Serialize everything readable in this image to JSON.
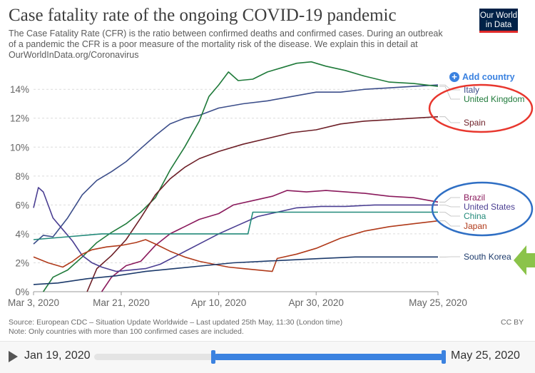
{
  "header": {
    "title": "Case fatality rate of the ongoing COVID-19 pandemic",
    "subtitle": "The Case Fatality Rate (CFR) is the ratio between confirmed deaths and confirmed cases. During an outbreak of a pandemic the CFR is a poor measure of the mortality risk of the disease. We explain this in detail at OurWorldInData.org/Coronavirus",
    "logo_line1": "Our World",
    "logo_line2": "in Data",
    "add_country": "Add country"
  },
  "footer": {
    "source": "Source: European CDC – Situation Update Worldwide – Last updated 25th May, 11:30 (London time)",
    "note": "Note: Only countries with more than 100 confirmed cases are included.",
    "license": "CC BY"
  },
  "timeline": {
    "start_label": "Jan 19, 2020",
    "end_label": "May 25, 2020",
    "selected_start_fraction": 0.34,
    "selected_end_fraction": 1.0
  },
  "annotations": {
    "red_circle_color": "#e8372e",
    "blue_circle_color": "#2f6fc4",
    "arrow_color": "#8bc34a"
  },
  "chart_data": {
    "type": "line",
    "x_ticks": [
      "Mar 3, 2020",
      "Mar 21, 2020",
      "Apr 10, 2020",
      "Apr 30, 2020",
      "May 25, 2020"
    ],
    "x_range": [
      "2020-03-03",
      "2020-05-25"
    ],
    "y_ticks": [
      "0%",
      "2%",
      "4%",
      "6%",
      "8%",
      "10%",
      "12%",
      "14%"
    ],
    "ylim": [
      0,
      14.7
    ],
    "grid": "horizontal dashed",
    "series": [
      {
        "name": "Italy",
        "color": "#3c4e8a",
        "points": [
          [
            "2020-03-03",
            3.3
          ],
          [
            "2020-03-05",
            3.9
          ],
          [
            "2020-03-07",
            3.8
          ],
          [
            "2020-03-10",
            5.1
          ],
          [
            "2020-03-13",
            6.7
          ],
          [
            "2020-03-16",
            7.7
          ],
          [
            "2020-03-19",
            8.3
          ],
          [
            "2020-03-22",
            9.0
          ],
          [
            "2020-03-25",
            9.9
          ],
          [
            "2020-03-28",
            10.8
          ],
          [
            "2020-03-31",
            11.6
          ],
          [
            "2020-04-03",
            12.0
          ],
          [
            "2020-04-06",
            12.2
          ],
          [
            "2020-04-10",
            12.7
          ],
          [
            "2020-04-15",
            13.0
          ],
          [
            "2020-04-20",
            13.2
          ],
          [
            "2020-04-25",
            13.5
          ],
          [
            "2020-04-30",
            13.8
          ],
          [
            "2020-05-05",
            13.8
          ],
          [
            "2020-05-10",
            14.0
          ],
          [
            "2020-05-15",
            14.1
          ],
          [
            "2020-05-20",
            14.2
          ],
          [
            "2020-05-25",
            14.3
          ]
        ]
      },
      {
        "name": "United Kingdom",
        "color": "#1f7a3a",
        "points": [
          [
            "2020-03-05",
            0.0
          ],
          [
            "2020-03-07",
            1.0
          ],
          [
            "2020-03-10",
            1.5
          ],
          [
            "2020-03-13",
            2.4
          ],
          [
            "2020-03-16",
            3.4
          ],
          [
            "2020-03-19",
            4.1
          ],
          [
            "2020-03-22",
            4.7
          ],
          [
            "2020-03-25",
            5.5
          ],
          [
            "2020-03-28",
            6.5
          ],
          [
            "2020-03-31",
            8.4
          ],
          [
            "2020-04-03",
            10.0
          ],
          [
            "2020-04-06",
            11.8
          ],
          [
            "2020-04-08",
            13.5
          ],
          [
            "2020-04-10",
            14.3
          ],
          [
            "2020-04-12",
            15.2
          ],
          [
            "2020-04-14",
            14.6
          ],
          [
            "2020-04-17",
            14.7
          ],
          [
            "2020-04-20",
            15.2
          ],
          [
            "2020-04-23",
            15.5
          ],
          [
            "2020-04-26",
            15.8
          ],
          [
            "2020-04-29",
            15.9
          ],
          [
            "2020-05-02",
            15.6
          ],
          [
            "2020-05-06",
            15.3
          ],
          [
            "2020-05-10",
            14.9
          ],
          [
            "2020-05-15",
            14.5
          ],
          [
            "2020-05-20",
            14.4
          ],
          [
            "2020-05-25",
            14.2
          ]
        ]
      },
      {
        "name": "Spain",
        "color": "#6d1f27",
        "points": [
          [
            "2020-03-14",
            0.0
          ],
          [
            "2020-03-16",
            1.6
          ],
          [
            "2020-03-19",
            2.5
          ],
          [
            "2020-03-22",
            3.6
          ],
          [
            "2020-03-25",
            5.1
          ],
          [
            "2020-03-28",
            6.7
          ],
          [
            "2020-03-31",
            7.8
          ],
          [
            "2020-04-03",
            8.6
          ],
          [
            "2020-04-06",
            9.2
          ],
          [
            "2020-04-10",
            9.7
          ],
          [
            "2020-04-15",
            10.2
          ],
          [
            "2020-04-20",
            10.6
          ],
          [
            "2020-04-25",
            11.0
          ],
          [
            "2020-04-30",
            11.2
          ],
          [
            "2020-05-05",
            11.6
          ],
          [
            "2020-05-10",
            11.8
          ],
          [
            "2020-05-15",
            11.9
          ],
          [
            "2020-05-20",
            12.0
          ],
          [
            "2020-05-25",
            12.1
          ]
        ]
      },
      {
        "name": "Brazil",
        "color": "#8a1a5c",
        "points": [
          [
            "2020-03-17",
            0.0
          ],
          [
            "2020-03-19",
            1.0
          ],
          [
            "2020-03-22",
            1.8
          ],
          [
            "2020-03-25",
            2.1
          ],
          [
            "2020-03-28",
            3.2
          ],
          [
            "2020-03-31",
            4.0
          ],
          [
            "2020-04-03",
            4.5
          ],
          [
            "2020-04-06",
            5.0
          ],
          [
            "2020-04-10",
            5.4
          ],
          [
            "2020-04-13",
            6.0
          ],
          [
            "2020-04-17",
            6.3
          ],
          [
            "2020-04-21",
            6.6
          ],
          [
            "2020-04-24",
            7.0
          ],
          [
            "2020-04-28",
            6.9
          ],
          [
            "2020-05-02",
            7.0
          ],
          [
            "2020-05-06",
            6.9
          ],
          [
            "2020-05-10",
            6.8
          ],
          [
            "2020-05-15",
            6.6
          ],
          [
            "2020-05-20",
            6.5
          ],
          [
            "2020-05-25",
            6.2
          ]
        ]
      },
      {
        "name": "United States",
        "color": "#4a3e92",
        "points": [
          [
            "2020-03-03",
            5.8
          ],
          [
            "2020-03-04",
            7.2
          ],
          [
            "2020-03-05",
            6.9
          ],
          [
            "2020-03-06",
            6.0
          ],
          [
            "2020-03-07",
            5.1
          ],
          [
            "2020-03-09",
            4.3
          ],
          [
            "2020-03-11",
            3.5
          ],
          [
            "2020-03-13",
            2.5
          ],
          [
            "2020-03-15",
            2.0
          ],
          [
            "2020-03-17",
            1.7
          ],
          [
            "2020-03-20",
            1.4
          ],
          [
            "2020-03-23",
            1.5
          ],
          [
            "2020-03-26",
            1.6
          ],
          [
            "2020-03-29",
            1.9
          ],
          [
            "2020-04-02",
            2.6
          ],
          [
            "2020-04-06",
            3.3
          ],
          [
            "2020-04-10",
            4.0
          ],
          [
            "2020-04-14",
            4.6
          ],
          [
            "2020-04-18",
            5.2
          ],
          [
            "2020-04-22",
            5.5
          ],
          [
            "2020-04-26",
            5.8
          ],
          [
            "2020-05-01",
            5.9
          ],
          [
            "2020-05-06",
            5.9
          ],
          [
            "2020-05-12",
            6.0
          ],
          [
            "2020-05-18",
            6.0
          ],
          [
            "2020-05-25",
            6.0
          ]
        ]
      },
      {
        "name": "China",
        "color": "#238a7a",
        "points": [
          [
            "2020-03-03",
            3.6
          ],
          [
            "2020-03-10",
            3.8
          ],
          [
            "2020-03-17",
            4.0
          ],
          [
            "2020-03-25",
            4.0
          ],
          [
            "2020-04-05",
            4.0
          ],
          [
            "2020-04-16",
            4.0
          ],
          [
            "2020-04-17",
            5.5
          ],
          [
            "2020-04-25",
            5.5
          ],
          [
            "2020-05-05",
            5.5
          ],
          [
            "2020-05-15",
            5.5
          ],
          [
            "2020-05-25",
            5.5
          ]
        ]
      },
      {
        "name": "Japan",
        "color": "#b03a1a",
        "points": [
          [
            "2020-03-03",
            2.4
          ],
          [
            "2020-03-06",
            2.0
          ],
          [
            "2020-03-09",
            1.7
          ],
          [
            "2020-03-11",
            2.1
          ],
          [
            "2020-03-13",
            2.6
          ],
          [
            "2020-03-15",
            2.9
          ],
          [
            "2020-03-18",
            3.1
          ],
          [
            "2020-03-21",
            3.2
          ],
          [
            "2020-03-24",
            3.4
          ],
          [
            "2020-03-26",
            3.6
          ],
          [
            "2020-03-28",
            3.3
          ],
          [
            "2020-03-31",
            2.8
          ],
          [
            "2020-04-03",
            2.4
          ],
          [
            "2020-04-06",
            2.1
          ],
          [
            "2020-04-09",
            1.9
          ],
          [
            "2020-04-12",
            1.7
          ],
          [
            "2020-04-15",
            1.6
          ],
          [
            "2020-04-18",
            1.5
          ],
          [
            "2020-04-21",
            1.4
          ],
          [
            "2020-04-22",
            2.3
          ],
          [
            "2020-04-26",
            2.6
          ],
          [
            "2020-04-30",
            3.0
          ],
          [
            "2020-05-05",
            3.7
          ],
          [
            "2020-05-10",
            4.2
          ],
          [
            "2020-05-15",
            4.5
          ],
          [
            "2020-05-20",
            4.7
          ],
          [
            "2020-05-25",
            4.9
          ]
        ]
      },
      {
        "name": "South Korea",
        "color": "#1c3a6b",
        "points": [
          [
            "2020-03-03",
            0.5
          ],
          [
            "2020-03-08",
            0.6
          ],
          [
            "2020-03-14",
            0.9
          ],
          [
            "2020-03-20",
            1.1
          ],
          [
            "2020-03-26",
            1.4
          ],
          [
            "2020-04-01",
            1.6
          ],
          [
            "2020-04-07",
            1.8
          ],
          [
            "2020-04-13",
            2.0
          ],
          [
            "2020-04-19",
            2.1
          ],
          [
            "2020-04-25",
            2.2
          ],
          [
            "2020-05-01",
            2.3
          ],
          [
            "2020-05-08",
            2.4
          ],
          [
            "2020-05-15",
            2.4
          ],
          [
            "2020-05-25",
            2.4
          ]
        ]
      }
    ]
  }
}
